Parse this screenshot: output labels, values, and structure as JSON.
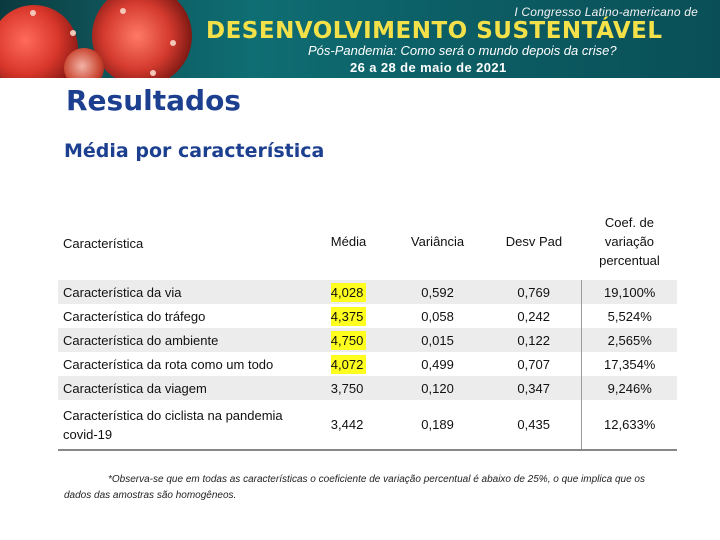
{
  "banner": {
    "subtitle_top": "I Congresso Latino-americano de",
    "title": "DESENVOLVIMENTO SUSTENTÁVEL",
    "subtitle": "Pós-Pandemia: Como será o mundo depois da crise?",
    "dates": "26 a 28 de maio de 2021"
  },
  "heading": "Resultados",
  "subheading": "Média por característica",
  "table": {
    "headers": {
      "characteristic": "Característica",
      "mean": "Média",
      "variance": "Variância",
      "std_dev": "Desv Pad",
      "coef": "Coef. de variação percentual"
    },
    "rows": [
      {
        "label": "Característica da via",
        "mean": "4,028",
        "variance": "0,592",
        "std_dev": "0,769",
        "coef": "19,100%",
        "highlight": true
      },
      {
        "label": "Característica do tráfego",
        "mean": "4,375",
        "variance": "0,058",
        "std_dev": "0,242",
        "coef": "5,524%",
        "highlight": true
      },
      {
        "label": "Característica do ambiente",
        "mean": "4,750",
        "variance": "0,015",
        "std_dev": "0,122",
        "coef": "2,565%",
        "highlight": true
      },
      {
        "label": "Característica da rota como um todo",
        "mean": "4,072",
        "variance": "0,499",
        "std_dev": "0,707",
        "coef": "17,354%",
        "highlight": true
      },
      {
        "label": "Característica da viagem",
        "mean": "3,750",
        "variance": "0,120",
        "std_dev": "0,347",
        "coef": "9,246%",
        "highlight": false
      },
      {
        "label": "Característica do ciclista na pandemia covid-19",
        "mean": "3,442",
        "variance": "0,189",
        "std_dev": "0,435",
        "coef": "12,633%",
        "highlight": false
      }
    ]
  },
  "footnote": "*Observa-se que em todas as características o coeficiente de variação percentual é abaixo de 25%, o que implica que os dados das amostras são homogêneos.",
  "colors": {
    "heading": "#1c3f8f",
    "banner_title": "#f4e14a",
    "highlight": "#ffff1f"
  }
}
